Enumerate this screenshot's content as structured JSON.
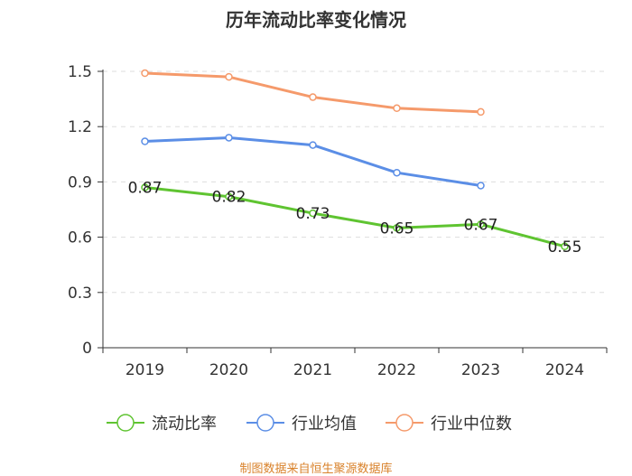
{
  "chart_data": {
    "type": "line",
    "title": "历年流动比率变化情况",
    "categories": [
      "2019",
      "2020",
      "2021",
      "2022",
      "2023",
      "2024"
    ],
    "ylim": [
      0,
      1.5
    ],
    "yticks": [
      "0",
      "0.3",
      "0.6",
      "0.9",
      "1.2",
      "1.5"
    ],
    "grid": true,
    "legend_position": "bottom",
    "series": [
      {
        "name": "流动比率",
        "color": "#5fc431",
        "values": [
          0.87,
          0.82,
          0.73,
          0.65,
          0.67,
          0.55
        ],
        "labels": [
          "0.87",
          "0.82",
          "0.73",
          "0.65",
          "0.67",
          "0.55"
        ]
      },
      {
        "name": "行业均值",
        "color": "#5b8ee6",
        "values": [
          1.12,
          1.14,
          1.1,
          0.95,
          0.88,
          null
        ]
      },
      {
        "name": "行业中位数",
        "color": "#f59a6b",
        "values": [
          1.49,
          1.47,
          1.36,
          1.3,
          1.28,
          null
        ]
      }
    ]
  },
  "source": "制图数据来自恒生聚源数据库"
}
